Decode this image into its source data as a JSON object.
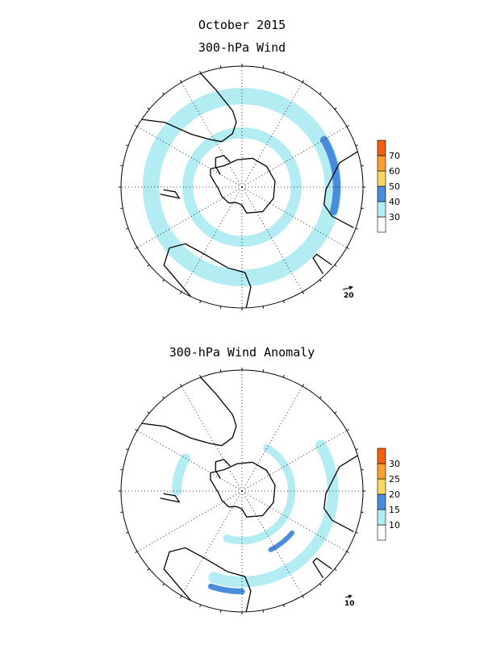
{
  "figure": {
    "title": "October 2015"
  },
  "panels": [
    {
      "id": "wind",
      "title": "300-hPa Wind",
      "reference_vector": "20",
      "colorbar": {
        "levels": [
          "30",
          "40",
          "50",
          "60",
          "70"
        ],
        "colors": [
          "#ffffff",
          "#b4ecf4",
          "#4a8cdc",
          "#f8d860",
          "#f8a030",
          "#f06010"
        ]
      },
      "wind_bands": [
        {
          "name": "subtropical-jet-band",
          "lat": -30,
          "width": 9,
          "color": "#b4ecf4"
        },
        {
          "name": "polar-jet-band",
          "lat": -52,
          "width": 7,
          "color": "#b4ecf4"
        },
        {
          "name": "jet-core",
          "lat": -28,
          "lon_from": 60,
          "lon_to": 105,
          "width": 4,
          "color": "#4a8cdc"
        }
      ]
    },
    {
      "id": "anomaly",
      "title": "300-hPa Wind Anomaly",
      "reference_vector": "10",
      "colorbar": {
        "levels": [
          "10",
          "15",
          "20",
          "25",
          "30"
        ],
        "colors": [
          "#ffffff",
          "#b4ecf4",
          "#4a8cdc",
          "#f8d860",
          "#f8a030",
          "#f06010"
        ]
      },
      "wind_bands": [
        {
          "name": "anomaly-band-north",
          "lat": -30,
          "lon_from": 60,
          "lon_to": 200,
          "width": 6,
          "color": "#b4ecf4"
        },
        {
          "name": "anomaly-band-inner",
          "lat": -55,
          "lon_from": 30,
          "lon_to": 200,
          "width": 5,
          "color": "#b4ecf4"
        },
        {
          "name": "anomaly-band-east",
          "lat": -45,
          "lon_from": 270,
          "lon_to": 300,
          "width": 6,
          "color": "#b4ecf4"
        },
        {
          "name": "anomaly-core-west",
          "lat": -45,
          "lon_from": 130,
          "lon_to": 155,
          "width": 3,
          "color": "#4a8cdc"
        },
        {
          "name": "anomaly-core-south",
          "lat": -25,
          "lon_from": 180,
          "lon_to": 200,
          "width": 3,
          "color": "#4a8cdc"
        }
      ]
    }
  ],
  "map": {
    "projection": "south-polar-stereographic",
    "boundary_latitude": -15,
    "graticule_lat_step": 15,
    "graticule_lon_step": 30,
    "vector_color": "#b00000",
    "coast_color": "#000000"
  }
}
